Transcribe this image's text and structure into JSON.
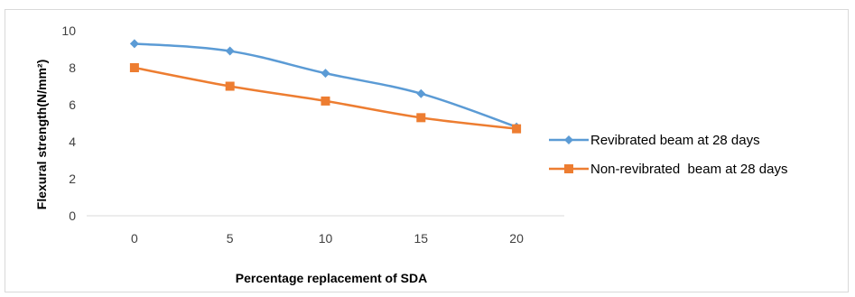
{
  "chart_data": {
    "type": "line",
    "categories": [
      "0",
      "5",
      "10",
      "15",
      "20"
    ],
    "x": [
      0,
      5,
      10,
      15,
      20
    ],
    "series": [
      {
        "name": "Revibrated beam at 28 days",
        "values": [
          9.3,
          8.9,
          7.7,
          6.6,
          4.8
        ],
        "color": "#5b9bd5",
        "marker": "diamond"
      },
      {
        "name": "Non-revibrated  beam at 28 days",
        "values": [
          8.0,
          7.0,
          6.2,
          5.3,
          4.7
        ],
        "color": "#ed7d31",
        "marker": "square"
      }
    ],
    "title": "",
    "xlabel": "Percentage replacement of SDA",
    "ylabel": "Flexural strength(N/mm²)",
    "ylim": [
      0,
      10
    ],
    "yticks": [
      "0",
      "2",
      "4",
      "6",
      "8",
      "10"
    ],
    "grid": false,
    "legend": "right"
  }
}
